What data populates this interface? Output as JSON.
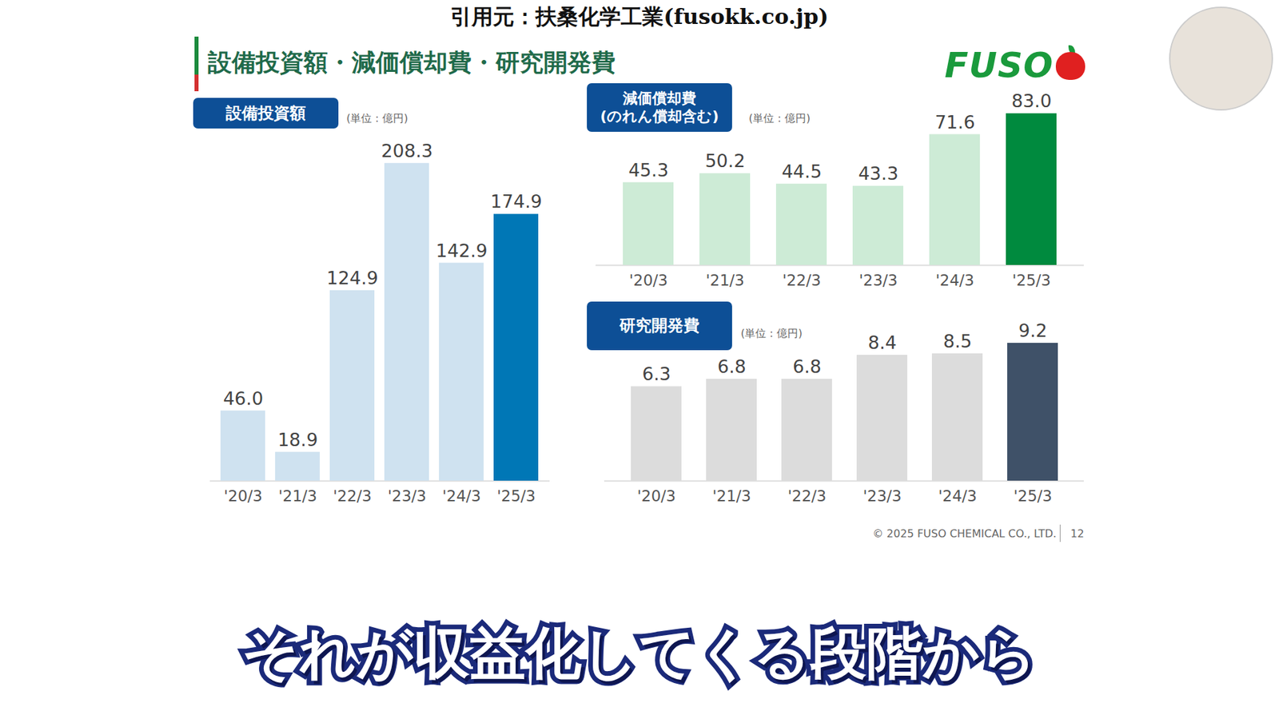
{
  "source": "引用元：扶桑化学工業(fusokk.co.jp)",
  "title": "設備投資額・減価償却費・研究開発費",
  "logo": "FUSO",
  "chart_data": [
    {
      "type": "bar",
      "title": "設備投資額",
      "subtitle": "(単位：億円)",
      "categories": [
        "'20/3",
        "'21/3",
        "'22/3",
        "'23/3",
        "'24/3",
        "'25/3"
      ],
      "values": [
        46.0,
        18.9,
        124.9,
        208.3,
        142.9,
        174.9
      ],
      "value_labels": [
        "46.0",
        "18.9",
        "124.9",
        "208.3",
        "142.9",
        "174.9"
      ],
      "colors": [
        "#cfe2f0",
        "#cfe2f0",
        "#cfe2f0",
        "#cfe2f0",
        "#cfe2f0",
        "#0077b6"
      ],
      "ylim": [
        0,
        220
      ],
      "data_labels": true,
      "tick_labels": "x"
    },
    {
      "type": "bar",
      "title": "減価償却費(のれん償却含む)",
      "subtitle": "(単位：億円)",
      "categories": [
        "'20/3",
        "'21/3",
        "'22/3",
        "'23/3",
        "'24/3",
        "'25/3"
      ],
      "values": [
        45.3,
        50.2,
        44.5,
        43.3,
        71.6,
        83.0
      ],
      "value_labels": [
        "45.3",
        "50.2",
        "44.5",
        "43.3",
        "71.6",
        "83.0"
      ],
      "colors": [
        "#cdebd6",
        "#cdebd6",
        "#cdebd6",
        "#cdebd6",
        "#cdebd6",
        "#008a3e"
      ],
      "ylim": [
        0,
        90
      ],
      "data_labels": true,
      "tick_labels": "x"
    },
    {
      "type": "bar",
      "title": "研究開発費",
      "subtitle": "(単位：億円)",
      "categories": [
        "'20/3",
        "'21/3",
        "'22/3",
        "'23/3",
        "'24/3",
        "'25/3"
      ],
      "values": [
        6.3,
        6.8,
        6.8,
        8.4,
        8.5,
        9.2
      ],
      "value_labels": [
        "6.3",
        "6.8",
        "6.8",
        "8.4",
        "8.5",
        "9.2"
      ],
      "colors": [
        "#dcdcdc",
        "#dcdcdc",
        "#dcdcdc",
        "#dcdcdc",
        "#dcdcdc",
        "#3f5168"
      ],
      "ylim": [
        0,
        10
      ],
      "data_labels": true,
      "tick_labels": "x"
    }
  ],
  "footer": "© 2025 FUSO CHEMICAL CO., LTD.",
  "page": 12,
  "caption": "それが収益化してくる段階から"
}
